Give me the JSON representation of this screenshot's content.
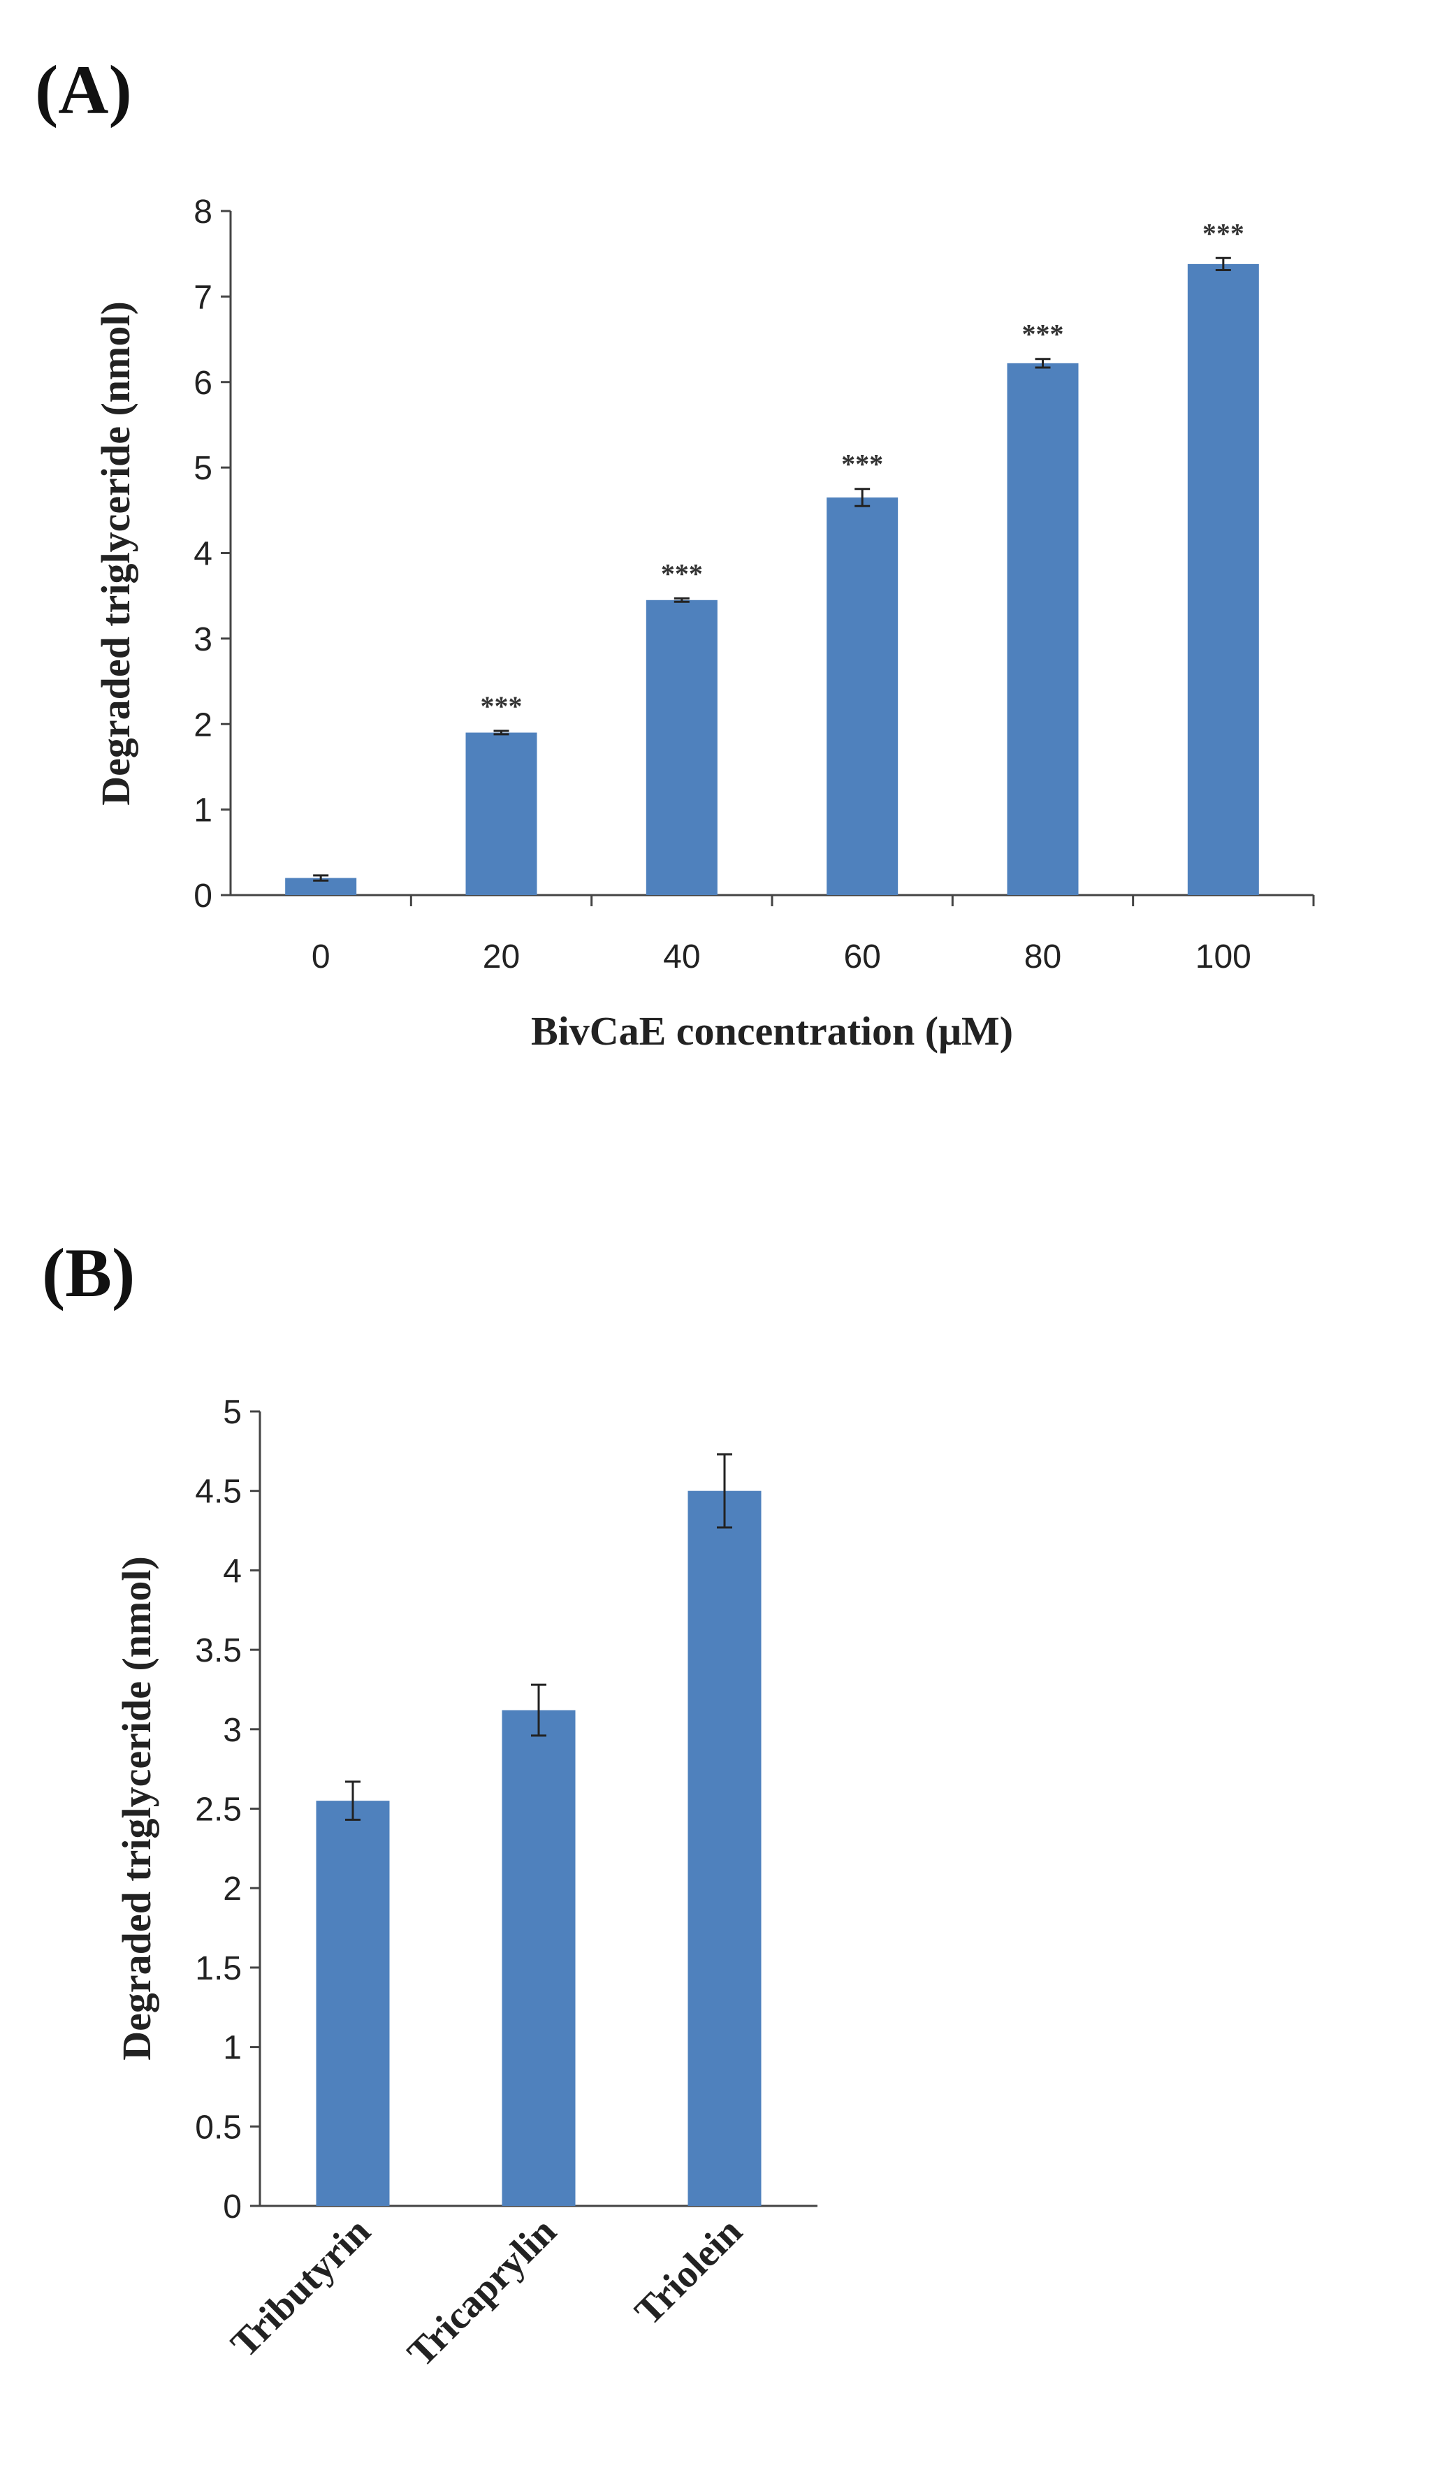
{
  "figure_labels": {
    "a": "(A)",
    "b": "(B)"
  },
  "colors": {
    "bar": "#4F81BD",
    "axis": "#444444",
    "error": "#222222"
  },
  "chart_data": [
    {
      "panel": "(A)",
      "type": "bar",
      "categories": [
        "0",
        "20",
        "40",
        "60",
        "80",
        "100"
      ],
      "values": [
        0.2,
        1.9,
        3.45,
        4.65,
        6.22,
        7.38
      ],
      "errors": [
        0.03,
        0.02,
        0.02,
        0.1,
        0.05,
        0.07
      ],
      "annotations": [
        "",
        "***",
        "***",
        "***",
        "***",
        "***"
      ],
      "ylim": [
        0,
        8
      ],
      "yticks": [
        "0",
        "1",
        "2",
        "3",
        "4",
        "5",
        "6",
        "7",
        "8"
      ],
      "ytick_values": [
        0,
        1,
        2,
        3,
        4,
        5,
        6,
        7,
        8
      ],
      "xlabel": "BivCaE concentration (μM)",
      "ylabel": "Degraded triglyceride (nmol)"
    },
    {
      "panel": "(B)",
      "type": "bar",
      "categories": [
        "Tributyrin",
        "Tricaprylin",
        "Triolein"
      ],
      "values": [
        2.55,
        3.12,
        4.5
      ],
      "errors": [
        0.12,
        0.16,
        0.23
      ],
      "ylim": [
        0,
        5
      ],
      "yticks": [
        "0",
        "0.5",
        "1",
        "1.5",
        "2",
        "2.5",
        "3",
        "3.5",
        "4",
        "4.5",
        "5"
      ],
      "ytick_values": [
        0,
        0.5,
        1,
        1.5,
        2,
        2.5,
        3,
        3.5,
        4,
        4.5,
        5
      ],
      "xlabel": "",
      "ylabel": "Degraded triglyceride (nmol)"
    }
  ]
}
